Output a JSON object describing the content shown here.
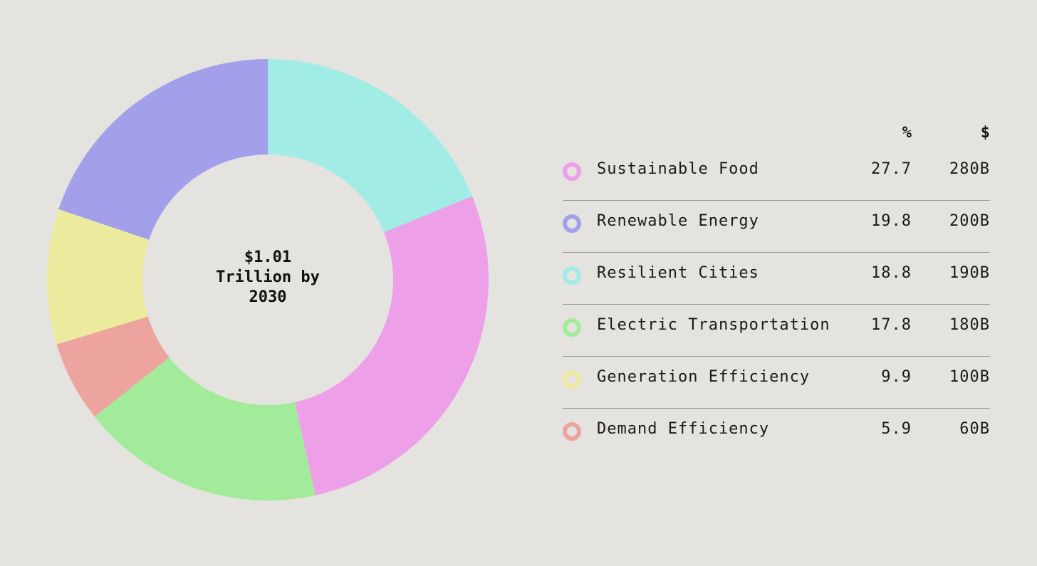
{
  "chart_data": {
    "type": "pie",
    "variant": "donut",
    "center_label": [
      "$1.01",
      "Trillion by",
      "2030"
    ],
    "columns": {
      "pct": "%",
      "usd": "$"
    },
    "slices": [
      {
        "label": "Sustainable Food",
        "pct": 27.7,
        "pct_label": "27.7",
        "usd_label": "280B",
        "color": "#eda0e8"
      },
      {
        "label": "Renewable Energy",
        "pct": 19.8,
        "pct_label": "19.8",
        "usd_label": "200B",
        "color": "#a29feb"
      },
      {
        "label": "Resilient Cities",
        "pct": 18.8,
        "pct_label": "18.8",
        "usd_label": "190B",
        "color": "#a2ece6"
      },
      {
        "label": "Electric Transportation",
        "pct": 17.8,
        "pct_label": "17.8",
        "usd_label": "180B",
        "color": "#a2eb9a"
      },
      {
        "label": "Generation Efficiency",
        "pct": 9.9,
        "pct_label": "9.9",
        "usd_label": "100B",
        "color": "#eceb9d"
      },
      {
        "label": "Demand Efficiency",
        "pct": 5.9,
        "pct_label": "5.9",
        "usd_label": "60B",
        "color": "#eda39e"
      }
    ],
    "slice_order_clockwise_from_top": [
      "Resilient Cities",
      "Sustainable Food",
      "Electric Transportation",
      "Demand Efficiency",
      "Generation Efficiency",
      "Renewable Energy"
    ]
  }
}
